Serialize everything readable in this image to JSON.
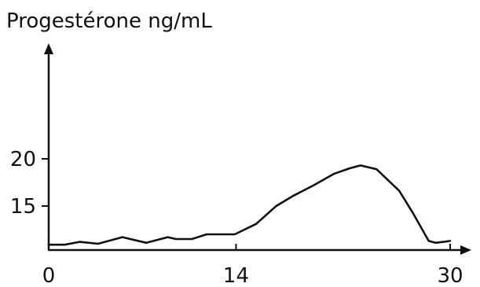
{
  "chart_data": {
    "type": "line",
    "title": "",
    "ylabel": "Progestérone ng/mL",
    "xlabel": "",
    "xlim": [
      0,
      30
    ],
    "ylim": [
      10.5,
      32
    ],
    "x_ticks": [
      {
        "value": 0,
        "label": "0"
      },
      {
        "value": 14,
        "label": "14"
      },
      {
        "value": 30,
        "label": "30"
      }
    ],
    "y_ticks": [
      {
        "value": 15,
        "label": "15"
      },
      {
        "value": 20,
        "label": "20"
      }
    ],
    "grid": false,
    "series": [
      {
        "color": "#111111",
        "x": [
          0,
          1.2,
          2.3,
          3.7,
          5.5,
          7.3,
          8.9,
          9.5,
          10.7,
          11.8,
          12.7,
          13.9,
          15.5,
          17.0,
          18.3,
          19.8,
          21.3,
          22.5,
          23.3,
          24.5,
          26.2,
          27.2,
          28.4,
          28.9,
          29.5,
          30.0
        ],
        "y": [
          10.9,
          10.9,
          11.2,
          11.0,
          11.7,
          11.1,
          11.7,
          11.5,
          11.5,
          12.0,
          12.0,
          12.0,
          13.1,
          15.0,
          16.1,
          17.2,
          18.4,
          19.0,
          19.3,
          18.9,
          16.6,
          14.3,
          11.3,
          11.1,
          11.2,
          11.3
        ]
      }
    ]
  }
}
